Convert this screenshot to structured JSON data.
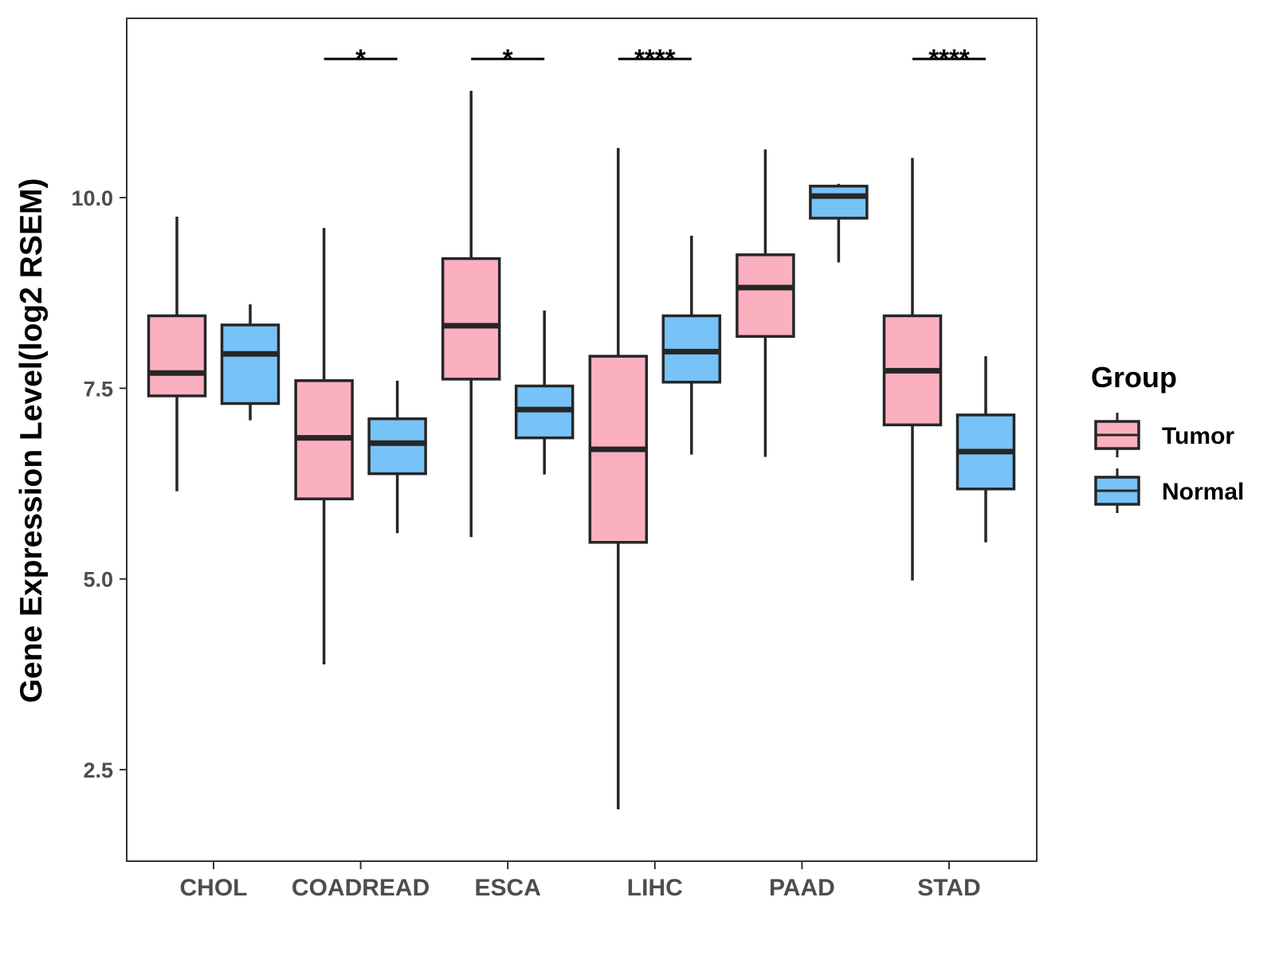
{
  "chart_data": {
    "type": "boxplot",
    "title": "",
    "xlabel": "",
    "ylabel": "Gene Expression Level(log2 RSEM)",
    "ylim": [
      1.3,
      12.35
    ],
    "y_ticks": [
      2.5,
      5.0,
      7.5,
      10.0
    ],
    "y_tick_labels": [
      "2.5",
      "5.0",
      "7.5",
      "10.0"
    ],
    "grid": false,
    "categories": [
      "CHOL",
      "COADREAD",
      "ESCA",
      "LIHC",
      "PAAD",
      "STAD"
    ],
    "legend": {
      "title": "Group",
      "position": "right",
      "entries": [
        "Tumor",
        "Normal"
      ]
    },
    "series": [
      {
        "name": "Tumor",
        "color": "#fbb0c0",
        "boxes": [
          {
            "min": 6.15,
            "q1": 7.4,
            "median": 7.7,
            "q3": 8.45,
            "max": 9.75
          },
          {
            "min": 3.88,
            "q1": 6.05,
            "median": 6.85,
            "q3": 7.6,
            "max": 9.6
          },
          {
            "min": 5.55,
            "q1": 7.62,
            "median": 8.32,
            "q3": 9.2,
            "max": 11.4
          },
          {
            "min": 1.98,
            "q1": 5.48,
            "median": 6.7,
            "q3": 7.92,
            "max": 10.65
          },
          {
            "min": 6.6,
            "q1": 8.18,
            "median": 8.82,
            "q3": 9.25,
            "max": 10.63
          },
          {
            "min": 4.98,
            "q1": 7.02,
            "median": 7.73,
            "q3": 8.45,
            "max": 10.52
          }
        ]
      },
      {
        "name": "Normal",
        "color": "#77c2f7",
        "boxes": [
          {
            "min": 7.08,
            "q1": 7.3,
            "median": 7.95,
            "q3": 8.33,
            "max": 8.6
          },
          {
            "min": 5.6,
            "q1": 6.38,
            "median": 6.78,
            "q3": 7.1,
            "max": 7.6
          },
          {
            "min": 6.37,
            "q1": 6.85,
            "median": 7.22,
            "q3": 7.53,
            "max": 8.52
          },
          {
            "min": 6.63,
            "q1": 7.58,
            "median": 7.98,
            "q3": 8.45,
            "max": 9.5
          },
          {
            "min": 9.15,
            "q1": 9.73,
            "median": 10.02,
            "q3": 10.15,
            "max": 10.18
          },
          {
            "min": 5.48,
            "q1": 6.18,
            "median": 6.67,
            "q3": 7.15,
            "max": 7.92
          }
        ]
      }
    ],
    "annotations": [
      {
        "category": "COADREAD",
        "label": "*"
      },
      {
        "category": "ESCA",
        "label": "*"
      },
      {
        "category": "LIHC",
        "label": "****"
      },
      {
        "category": "STAD",
        "label": "****"
      }
    ],
    "colors": {
      "outline": "#262626",
      "tick_text": "#4d4d4d",
      "panel_border": "#333333"
    }
  }
}
